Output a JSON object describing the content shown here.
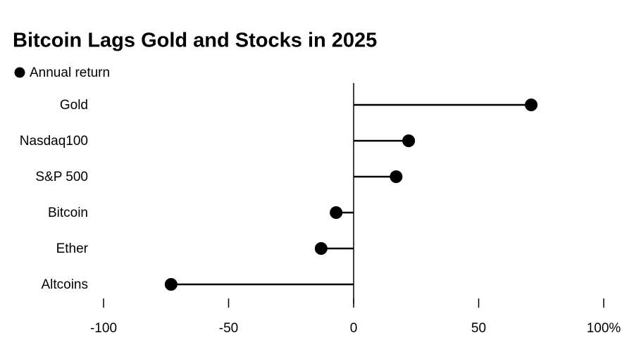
{
  "chart_data": {
    "type": "lollipop",
    "title": "Bitcoin Lags Gold and Stocks in 2025",
    "categories": [
      "Gold",
      "Nasdaq100",
      "S&P 500",
      "Bitcoin",
      "Ether",
      "Altcoins"
    ],
    "series": [
      {
        "name": "Annual return",
        "color": "#000000",
        "values": [
          71,
          22,
          17,
          -7,
          -13,
          -73
        ]
      }
    ],
    "xlim": [
      -100,
      100
    ],
    "xticks": [
      -100,
      -50,
      0,
      50,
      {
        "value": 100,
        "label": "100%"
      }
    ]
  }
}
